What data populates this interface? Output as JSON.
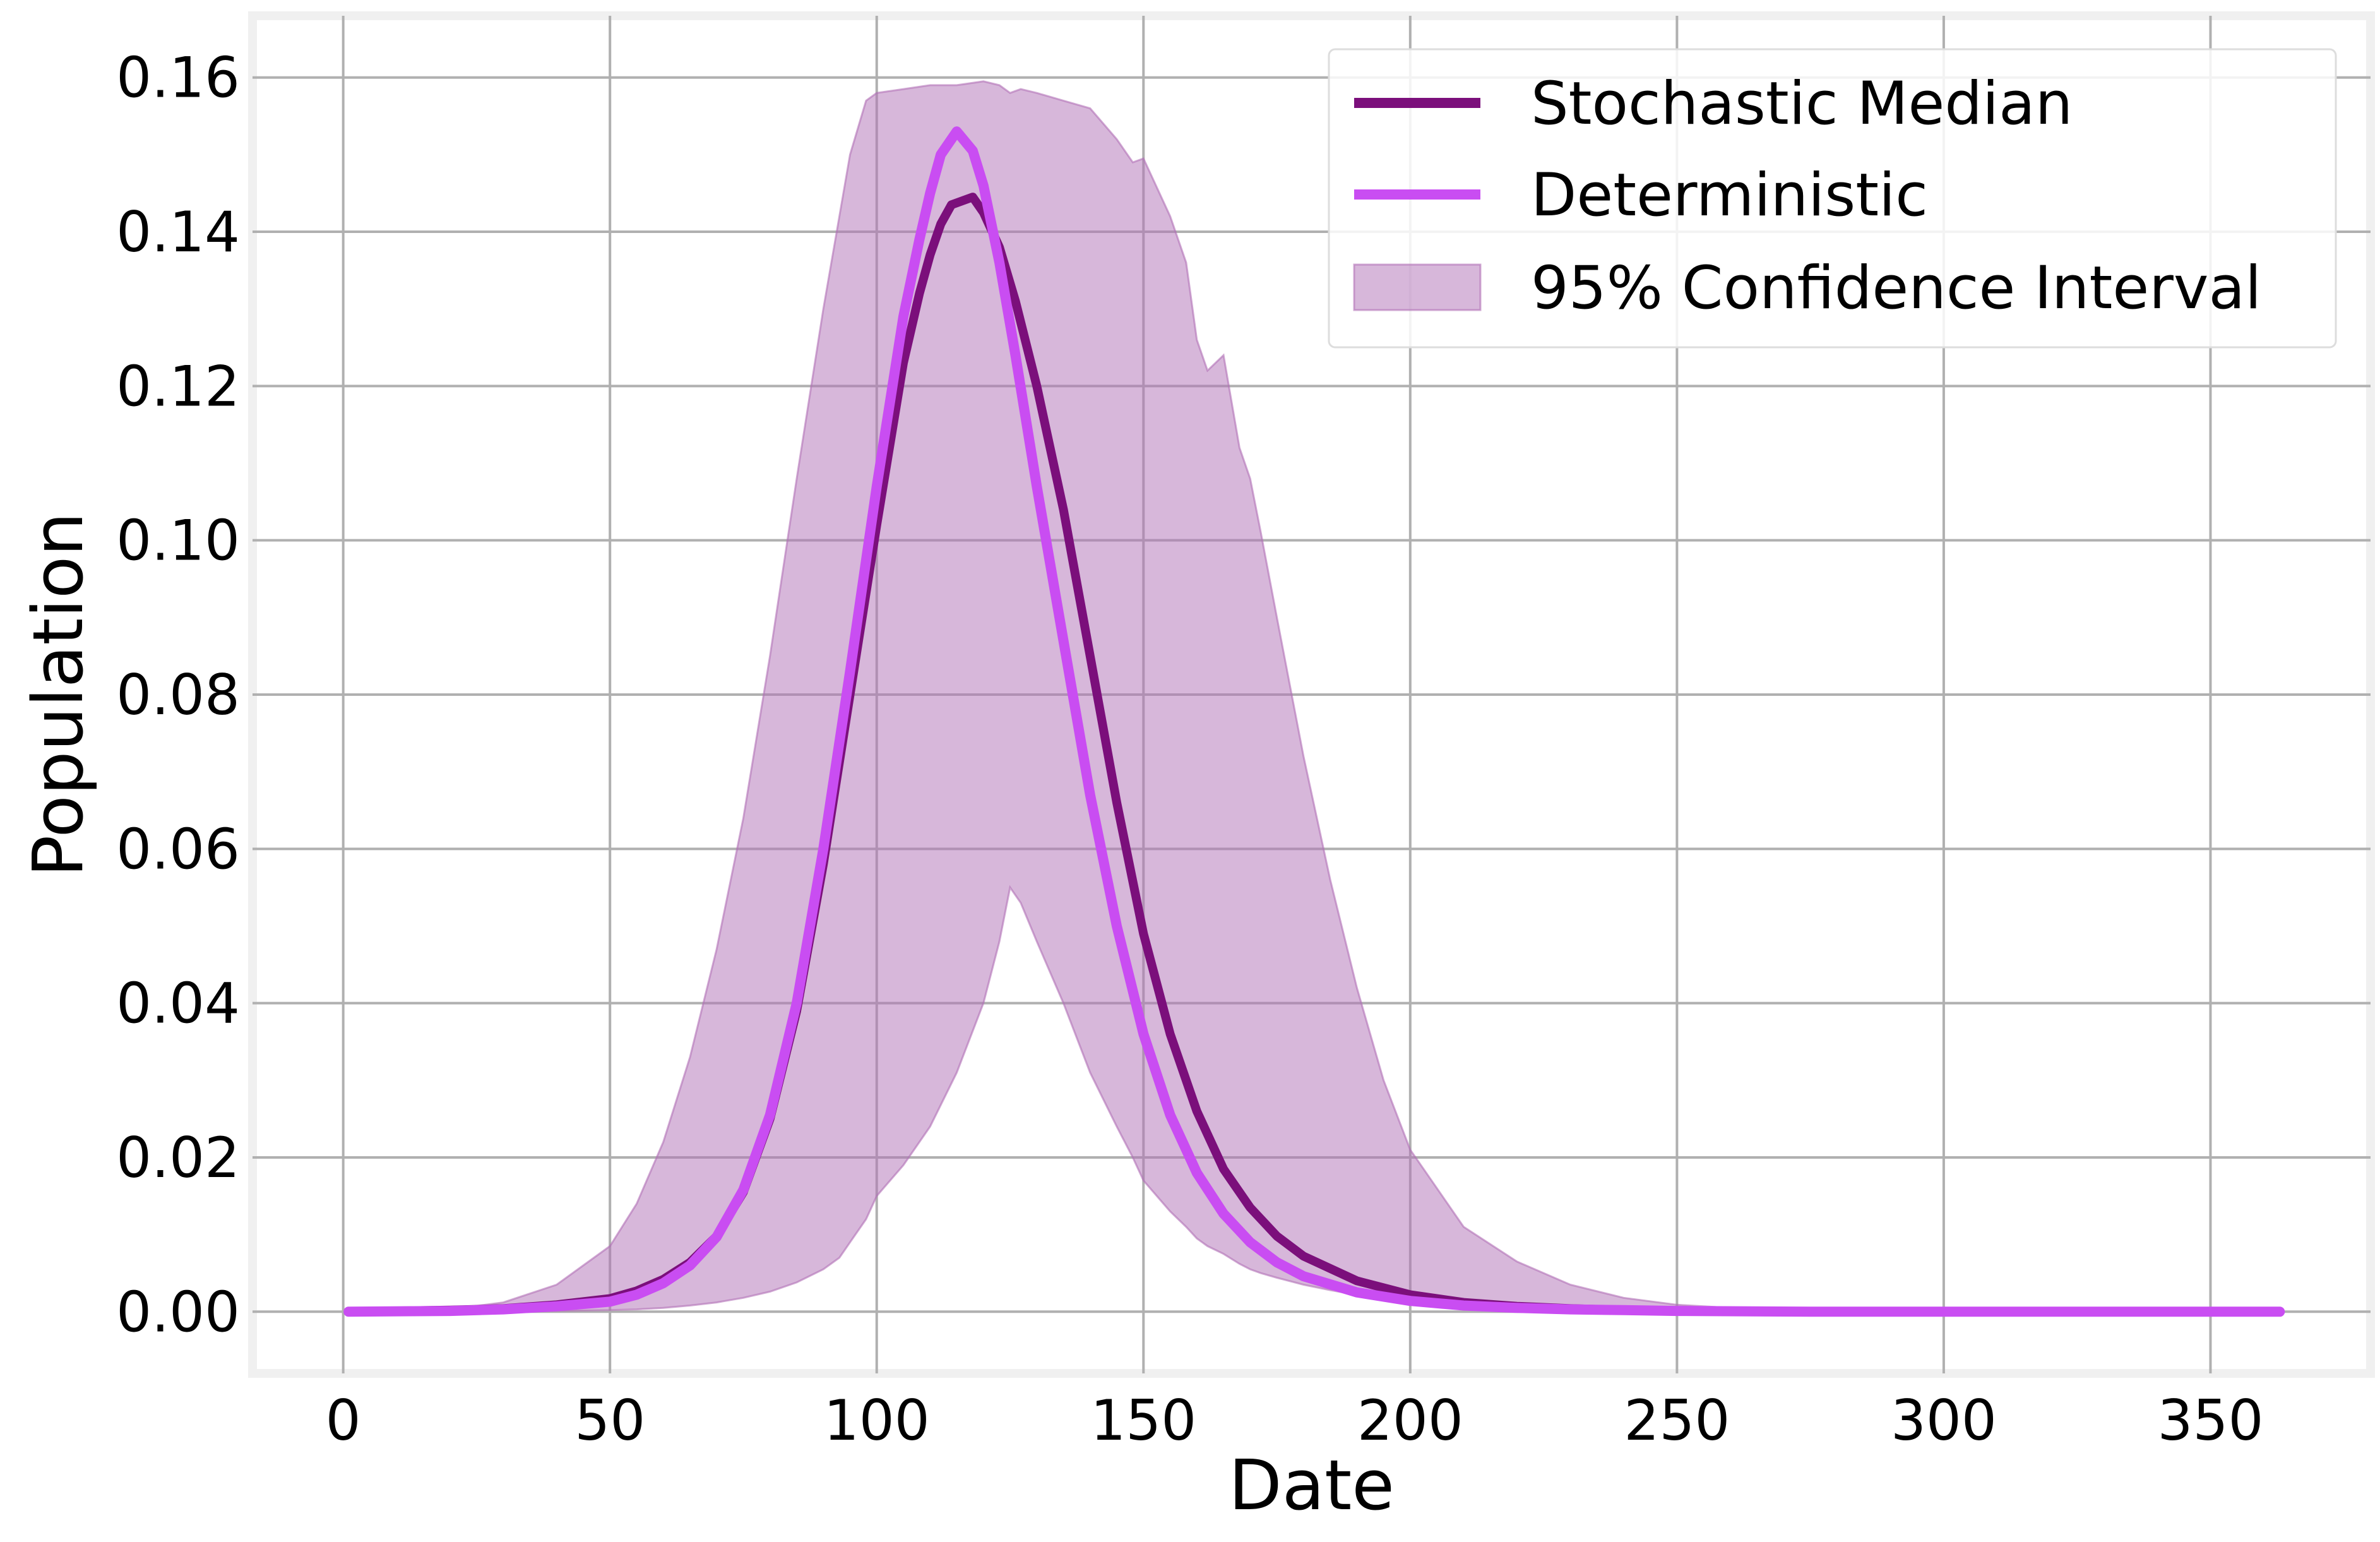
{
  "chart_data": {
    "type": "line",
    "title": "",
    "xlabel": "Date",
    "ylabel": "Population",
    "xlim": [
      -17,
      380
    ],
    "ylim": [
      -0.008,
      0.168
    ],
    "xticks": [
      0,
      50,
      100,
      150,
      200,
      250,
      300,
      350
    ],
    "yticks": [
      0.0,
      0.02,
      0.04,
      0.06,
      0.08,
      0.1,
      0.12,
      0.14,
      0.16
    ],
    "ytick_labels": [
      "0.00",
      "0.02",
      "0.04",
      "0.06",
      "0.08",
      "0.10",
      "0.12",
      "0.14",
      "0.16"
    ],
    "grid": true,
    "legend_position": "top-right",
    "series": [
      {
        "name": "Stochastic Median",
        "kind": "line",
        "color": "#7b0f7b",
        "x": [
          1,
          20,
          30,
          40,
          50,
          55,
          60,
          65,
          70,
          75,
          80,
          85,
          90,
          95,
          100,
          105,
          108,
          110,
          112,
          114,
          116,
          118,
          120,
          123,
          126,
          130,
          135,
          140,
          145,
          150,
          155,
          160,
          165,
          170,
          175,
          180,
          190,
          200,
          210,
          220,
          230,
          240,
          250,
          275,
          300,
          325,
          350,
          363
        ],
        "y": [
          0.0,
          0.0002,
          0.0004,
          0.0009,
          0.0017,
          0.0027,
          0.0042,
          0.0064,
          0.0098,
          0.0155,
          0.025,
          0.039,
          0.058,
          0.08,
          0.102,
          0.123,
          0.132,
          0.137,
          0.141,
          0.1435,
          0.144,
          0.1445,
          0.1425,
          0.138,
          0.131,
          0.12,
          0.104,
          0.085,
          0.066,
          0.049,
          0.036,
          0.026,
          0.0185,
          0.0135,
          0.0098,
          0.0072,
          0.004,
          0.0022,
          0.0012,
          0.0007,
          0.0004,
          0.0002,
          0.0001,
          0.0,
          0.0,
          0.0,
          0.0,
          0.0
        ]
      },
      {
        "name": "Deterministic",
        "kind": "line",
        "color": "#c94df2",
        "x": [
          1,
          20,
          30,
          40,
          50,
          55,
          60,
          65,
          70,
          75,
          80,
          85,
          90,
          95,
          100,
          105,
          108,
          110,
          112,
          115,
          118,
          120,
          123,
          126,
          130,
          135,
          140,
          145,
          150,
          155,
          160,
          165,
          170,
          175,
          180,
          190,
          200,
          210,
          220,
          230,
          240,
          250,
          275,
          300,
          325,
          350,
          363
        ],
        "y": [
          0.0,
          0.0001,
          0.0003,
          0.0007,
          0.0013,
          0.0022,
          0.0037,
          0.006,
          0.0097,
          0.0158,
          0.0255,
          0.04,
          0.06,
          0.083,
          0.107,
          0.129,
          0.139,
          0.145,
          0.15,
          0.153,
          0.1505,
          0.146,
          0.136,
          0.124,
          0.107,
          0.087,
          0.067,
          0.05,
          0.036,
          0.0255,
          0.018,
          0.0127,
          0.009,
          0.0064,
          0.0046,
          0.0025,
          0.0014,
          0.0008,
          0.0005,
          0.0003,
          0.0002,
          0.0001,
          0.0,
          0.0,
          0.0,
          0.0,
          0.0
        ]
      },
      {
        "name": "95% Confidence Interval",
        "kind": "band",
        "color": "#b06fb6",
        "opacity": 0.5,
        "x": [
          1,
          20,
          30,
          40,
          50,
          55,
          60,
          65,
          70,
          75,
          80,
          85,
          90,
          93,
          95,
          98,
          100,
          105,
          110,
          115,
          120,
          123,
          125,
          127,
          130,
          135,
          140,
          145,
          148,
          150,
          155,
          158,
          160,
          162,
          165,
          168,
          170,
          172,
          175,
          180,
          185,
          190,
          195,
          200,
          210,
          220,
          230,
          240,
          250,
          260,
          275,
          300,
          325,
          350,
          363
        ],
        "lower": [
          0.0,
          0.0,
          0.0,
          0.0001,
          0.0002,
          0.0003,
          0.0005,
          0.0008,
          0.0012,
          0.0018,
          0.0026,
          0.0038,
          0.0055,
          0.007,
          0.009,
          0.012,
          0.015,
          0.019,
          0.024,
          0.031,
          0.04,
          0.048,
          0.055,
          0.053,
          0.048,
          0.04,
          0.031,
          0.024,
          0.02,
          0.017,
          0.013,
          0.011,
          0.0095,
          0.0085,
          0.0075,
          0.0062,
          0.0055,
          0.005,
          0.0044,
          0.0035,
          0.0028,
          0.0022,
          0.0017,
          0.0013,
          0.0008,
          0.0005,
          0.0003,
          0.0002,
          0.0001,
          0.0,
          0.0,
          0.0,
          0.0,
          0.0,
          0.0
        ],
        "upper": [
          0.0,
          0.0003,
          0.0012,
          0.0035,
          0.0085,
          0.014,
          0.022,
          0.033,
          0.047,
          0.064,
          0.085,
          0.108,
          0.13,
          0.142,
          0.15,
          0.157,
          0.158,
          0.1585,
          0.159,
          0.159,
          0.1595,
          0.159,
          0.158,
          0.1585,
          0.158,
          0.157,
          0.156,
          0.152,
          0.149,
          0.1495,
          0.142,
          0.136,
          0.126,
          0.122,
          0.124,
          0.112,
          0.108,
          0.101,
          0.09,
          0.072,
          0.056,
          0.042,
          0.03,
          0.021,
          0.011,
          0.0065,
          0.0035,
          0.0018,
          0.0009,
          0.0005,
          0.0002,
          0.0,
          0.0,
          0.0,
          0.0
        ]
      }
    ]
  }
}
